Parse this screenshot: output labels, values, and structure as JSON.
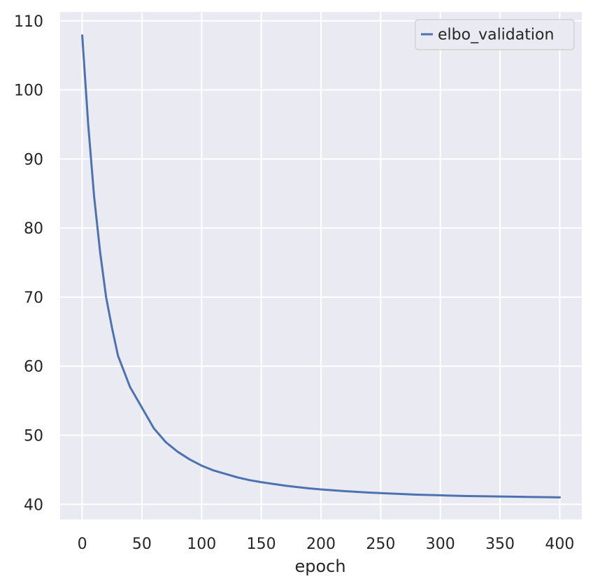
{
  "chart_data": {
    "type": "line",
    "title": "",
    "xlabel": "epoch",
    "ylabel": "",
    "xlim": [
      -18.5,
      418.5
    ],
    "ylim": [
      37.8,
      111.3
    ],
    "xticks": [
      0,
      50,
      100,
      150,
      200,
      250,
      300,
      350,
      400
    ],
    "yticks": [
      40,
      50,
      60,
      70,
      80,
      90,
      100,
      110
    ],
    "grid": true,
    "legend_position": "top-right",
    "colors": {
      "background": "#eaeaf2",
      "grid": "#ffffff",
      "series": "#4c72b0",
      "text": "#262626"
    },
    "series": [
      {
        "name": "elbo_validation",
        "x": [
          0,
          5,
          10,
          15,
          20,
          25,
          30,
          40,
          50,
          60,
          70,
          80,
          90,
          100,
          110,
          120,
          130,
          140,
          150,
          160,
          170,
          180,
          190,
          200,
          220,
          240,
          260,
          280,
          300,
          320,
          340,
          360,
          380,
          400
        ],
        "y": [
          107.9,
          95.0,
          84.5,
          76.5,
          70.0,
          65.5,
          61.5,
          57.0,
          54.0,
          51.0,
          49.0,
          47.6,
          46.5,
          45.6,
          44.9,
          44.4,
          43.9,
          43.5,
          43.2,
          42.95,
          42.7,
          42.5,
          42.3,
          42.15,
          41.9,
          41.7,
          41.55,
          41.4,
          41.3,
          41.2,
          41.15,
          41.1,
          41.05,
          41.0
        ]
      }
    ]
  }
}
